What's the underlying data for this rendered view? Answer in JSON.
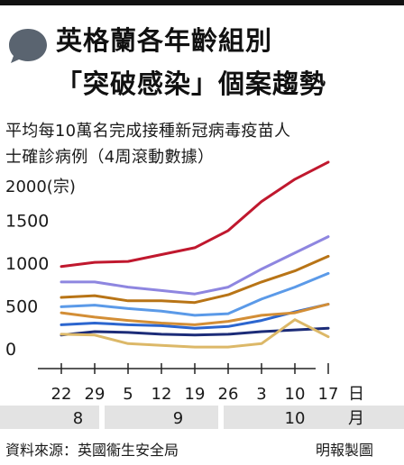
{
  "header": {
    "title_line1": "英格蘭各年齡組別",
    "title_line2": "「突破感染」個案趨勢",
    "icon": "speech-bubble-icon",
    "colors": {
      "topbar": "#111111",
      "bubble": "#5a6470"
    }
  },
  "subtitle": {
    "line1": "平均每10萬名完成接種新冠病毒疫苗人",
    "line2": "士確診病例（4周滾動數據）"
  },
  "chart_data": {
    "type": "line",
    "ylabel": "2000(宗)",
    "yticks": [
      "1500",
      "1000",
      "500",
      "0"
    ],
    "ylim": [
      0,
      2000
    ],
    "x": [
      "22",
      "29",
      "5",
      "12",
      "19",
      "26",
      "3",
      "10",
      "17"
    ],
    "x_unit": "日",
    "months": [
      {
        "label": "8",
        "from": 0,
        "to": 1
      },
      {
        "label": "9",
        "from": 2,
        "to": 5
      },
      {
        "label": "10",
        "from": 6,
        "to": 8
      }
    ],
    "month_unit": "月",
    "grid": false,
    "legend": "none",
    "series": [
      {
        "color": "#c0182e",
        "values": [
          960,
          1010,
          1020,
          1100,
          1180,
          1380,
          1720,
          1980,
          2180
        ]
      },
      {
        "color": "#8e86e0",
        "values": [
          780,
          780,
          720,
          680,
          640,
          720,
          930,
          1120,
          1310
        ]
      },
      {
        "color": "#b87416",
        "values": [
          600,
          620,
          560,
          560,
          540,
          630,
          780,
          910,
          1080
        ]
      },
      {
        "color": "#5b9ae8",
        "values": [
          490,
          510,
          470,
          440,
          390,
          410,
          580,
          720,
          880
        ]
      },
      {
        "color": "#d38e36",
        "values": [
          420,
          370,
          330,
          300,
          280,
          320,
          390,
          420,
          520
        ]
      },
      {
        "color": "#2c66cf",
        "values": [
          280,
          300,
          280,
          270,
          240,
          260,
          330,
          430,
          520
        ]
      },
      {
        "color": "#dcb868",
        "values": [
          170,
          160,
          60,
          40,
          20,
          20,
          60,
          340,
          140
        ]
      },
      {
        "color": "#1c2c78",
        "values": [
          160,
          200,
          190,
          170,
          160,
          170,
          200,
          220,
          240
        ]
      }
    ]
  },
  "footer": {
    "source": "資料來源：英國衞生安全局",
    "credit": "明報製圖"
  }
}
